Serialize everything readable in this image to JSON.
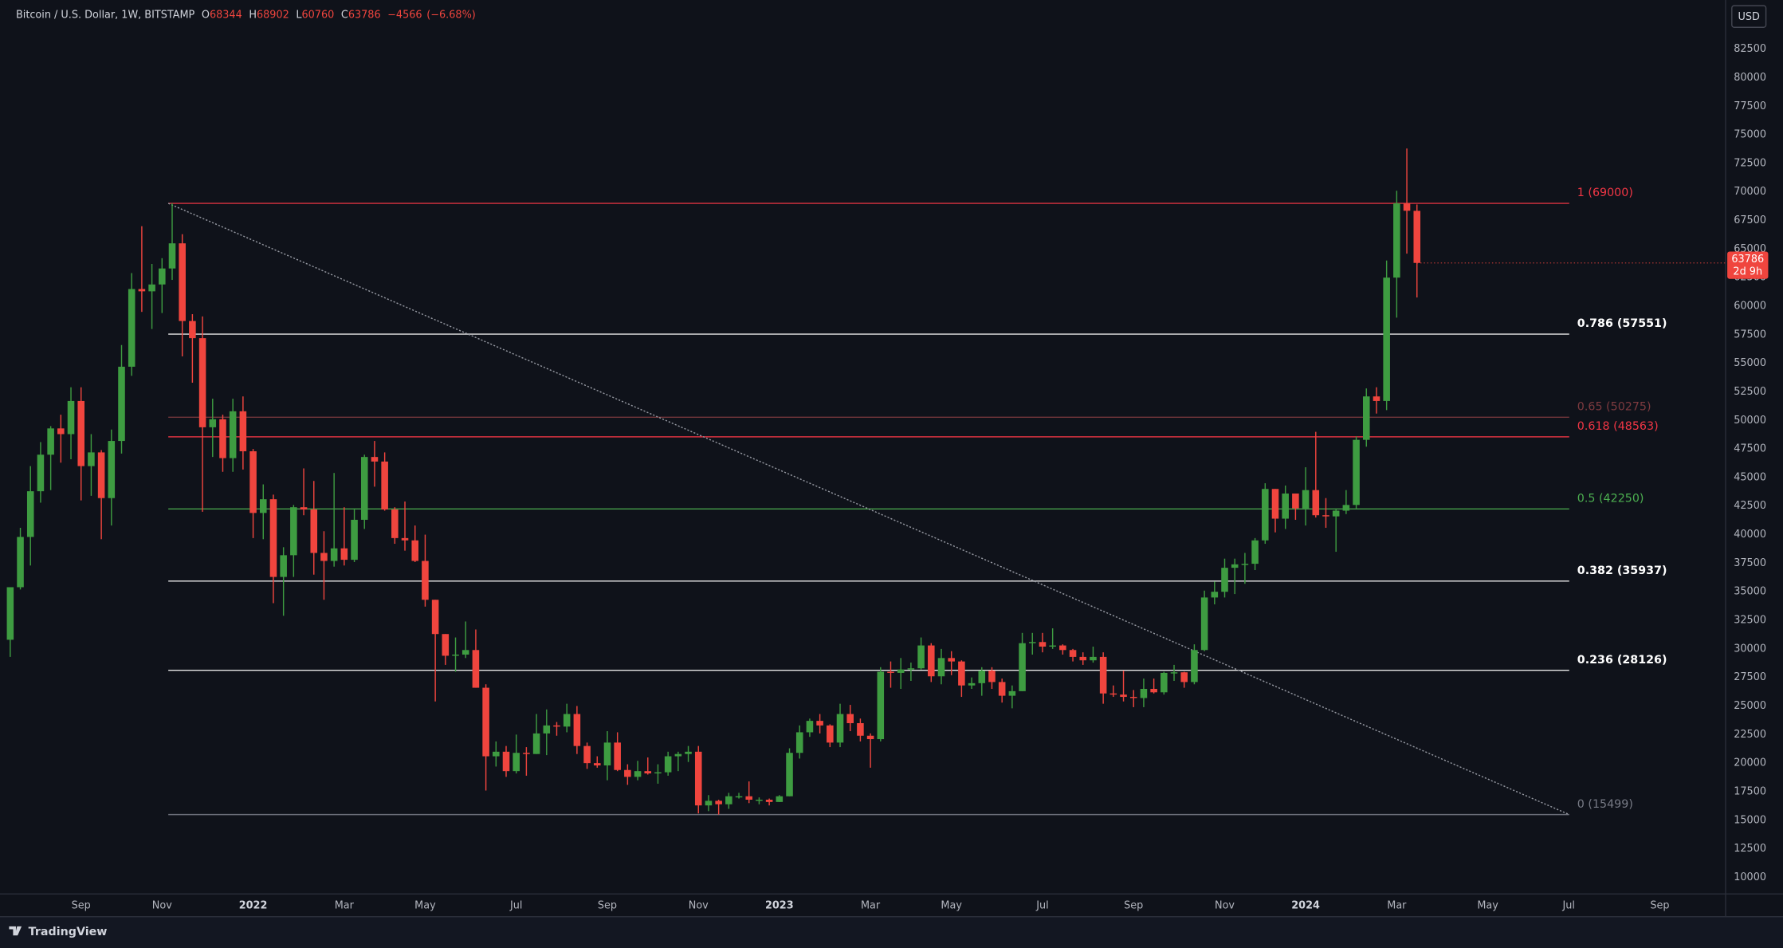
{
  "header": {
    "title": "Bitcoin / U.S. Dollar, 1W, BITSTAMP",
    "ohlc_keys": [
      "O",
      "H",
      "L",
      "C"
    ],
    "change": "−4566",
    "change_pct": "(−6.68%)",
    "currency": "USD",
    "countdown": "2d 9h",
    "brand": "TradingView"
  },
  "chart_data": {
    "type": "candlestick",
    "up_color": "#3e9c41",
    "down_color": "#f0453e",
    "open": [
      30800,
      35400,
      39800,
      43800,
      47000,
      49300,
      48800,
      51700,
      46000,
      47200,
      43200,
      48200,
      54700,
      61500,
      61300,
      61900,
      63300,
      65500,
      58700,
      57200,
      49400,
      50100,
      46700,
      50800,
      47300,
      41900,
      43100,
      36300,
      38200,
      42400,
      42200,
      38400,
      37700,
      38800,
      37800,
      41300,
      46800,
      46400,
      42200,
      39700,
      39500,
      37700,
      34300,
      31300,
      29400,
      29500,
      29900,
      26600,
      20600,
      21000,
      19300,
      20900,
      20800,
      22600,
      23300,
      23200,
      24300,
      21500,
      20000,
      19800,
      21800,
      19400,
      18800,
      19300,
      19100,
      19200,
      20600,
      20800,
      21000,
      16300,
      16700,
      16400,
      17100,
      17100,
      16800,
      16800,
      16600,
      17100,
      20900,
      22700,
      23700,
      23300,
      21800,
      24300,
      23500,
      22400,
      22100,
      28000,
      27900,
      28200,
      28300,
      30300,
      27600,
      29200,
      28900,
      26800,
      27000,
      28100,
      27100,
      25900,
      26300,
      30500,
      30600,
      30200,
      30300,
      29900,
      29300,
      29000,
      29300,
      26100,
      26000,
      25800,
      25700,
      26500,
      26200,
      27900,
      27950,
      27100,
      29900,
      34500,
      35000,
      37100,
      37400,
      37450,
      39500,
      44000,
      41400,
      43600,
      42300,
      43900,
      41700,
      41600,
      42100,
      42600,
      48300,
      52100,
      51700,
      62500,
      69000,
      68344
    ],
    "high": [
      35400,
      40600,
      46000,
      48100,
      49500,
      50500,
      52900,
      52900,
      48800,
      47400,
      49200,
      56600,
      62900,
      67000,
      63700,
      64200,
      69000,
      66300,
      59300,
      59100,
      51900,
      50500,
      51900,
      52100,
      47500,
      44400,
      43500,
      38900,
      42600,
      45800,
      44700,
      40300,
      45400,
      42400,
      42300,
      47000,
      48200,
      47200,
      42400,
      42900,
      40800,
      40000,
      34300,
      31300,
      31000,
      32400,
      31700,
      26900,
      21900,
      21500,
      22500,
      21400,
      24300,
      24700,
      23600,
      25200,
      25000,
      21800,
      20600,
      22800,
      22700,
      19900,
      20200,
      20500,
      19900,
      21000,
      21000,
      21500,
      21500,
      17200,
      16800,
      17400,
      17400,
      18400,
      17000,
      16900,
      17200,
      21300,
      23300,
      23900,
      24300,
      23400,
      25200,
      25100,
      23900,
      22600,
      28400,
      28900,
      29200,
      28800,
      31000,
      30500,
      30000,
      29800,
      29000,
      27500,
      28400,
      28400,
      27400,
      26800,
      31400,
      31400,
      31400,
      31800,
      30400,
      30000,
      29700,
      30200,
      29700,
      26800,
      28100,
      26400,
      27400,
      27400,
      28000,
      28600,
      28000,
      30400,
      35100,
      35900,
      37900,
      37900,
      38400,
      39700,
      44500,
      44000,
      44300,
      43600,
      45900,
      49000,
      43200,
      42200,
      43900,
      48600,
      52800,
      52900,
      64000,
      70100,
      73800,
      68902
    ],
    "low": [
      29300,
      35200,
      37300,
      42800,
      43900,
      46300,
      46600,
      43000,
      43400,
      39600,
      40800,
      47100,
      53900,
      59500,
      58000,
      59400,
      62300,
      55600,
      53300,
      42000,
      46800,
      45500,
      45500,
      45700,
      39700,
      39600,
      34000,
      32900,
      36300,
      41700,
      36500,
      34300,
      37200,
      37300,
      37600,
      40500,
      44200,
      42100,
      39200,
      38600,
      37600,
      33700,
      25400,
      28600,
      28000,
      29200,
      26600,
      17600,
      19700,
      18800,
      19100,
      18900,
      20800,
      20700,
      22400,
      22700,
      20800,
      19500,
      19600,
      18500,
      19300,
      18100,
      18500,
      19000,
      18200,
      18900,
      19300,
      20100,
      15600,
      15800,
      15500,
      16000,
      16900,
      16500,
      16400,
      16300,
      16600,
      17100,
      20400,
      22300,
      22600,
      21400,
      21400,
      22800,
      21900,
      19600,
      21900,
      26600,
      26500,
      27200,
      28200,
      27100,
      26900,
      27700,
      25800,
      26500,
      25900,
      26500,
      25300,
      24800,
      26300,
      29500,
      29700,
      30000,
      29500,
      28900,
      28600,
      28800,
      25200,
      25800,
      25400,
      24900,
      24900,
      26100,
      26000,
      27200,
      26600,
      26900,
      29800,
      33900,
      34500,
      34800,
      35700,
      36900,
      39200,
      40200,
      40500,
      41300,
      40800,
      41500,
      40600,
      38500,
      41800,
      42300,
      47700,
      50600,
      50900,
      59000,
      64600,
      60760
    ],
    "close": [
      35400,
      39800,
      43800,
      47000,
      49300,
      48800,
      51700,
      46000,
      47200,
      43200,
      48200,
      54700,
      61500,
      61300,
      61900,
      63300,
      65500,
      58700,
      57200,
      49400,
      50100,
      46700,
      50800,
      47300,
      41900,
      43100,
      36300,
      38200,
      42400,
      42200,
      38400,
      37700,
      38800,
      37800,
      41300,
      46800,
      46400,
      42200,
      39700,
      39500,
      37700,
      34300,
      31300,
      29400,
      29500,
      29900,
      26600,
      20600,
      21000,
      19300,
      20900,
      20800,
      22600,
      23300,
      23200,
      24300,
      21500,
      20000,
      19800,
      21800,
      19400,
      18800,
      19300,
      19100,
      19200,
      20600,
      20800,
      21000,
      16300,
      16700,
      16400,
      17100,
      17100,
      16800,
      16800,
      16600,
      17100,
      20900,
      22700,
      23700,
      23300,
      21800,
      24300,
      23500,
      22400,
      22100,
      28000,
      27900,
      28200,
      28300,
      30300,
      27600,
      29200,
      28900,
      26800,
      27000,
      28100,
      27100,
      25900,
      26300,
      30500,
      30600,
      30200,
      30300,
      29900,
      29300,
      29000,
      29300,
      26100,
      26000,
      25800,
      25700,
      26500,
      26200,
      27900,
      27950,
      27100,
      29900,
      34500,
      35000,
      37100,
      37400,
      37450,
      39500,
      44000,
      41400,
      43600,
      42300,
      43900,
      41700,
      41600,
      42100,
      42600,
      48300,
      52100,
      51700,
      62500,
      69000,
      68352,
      63786
    ],
    "ylim": [
      8600,
      86800
    ],
    "yticks": [
      10000,
      12500,
      15000,
      17500,
      20000,
      22500,
      25000,
      27500,
      30000,
      32500,
      35000,
      37500,
      40000,
      42500,
      45000,
      47500,
      50000,
      52500,
      55000,
      57500,
      60000,
      62500,
      65000,
      67500,
      70000,
      72500,
      75000,
      77500,
      80000,
      82500
    ],
    "xticks": [
      {
        "value": "2021-09",
        "label": "Sep"
      },
      {
        "value": "2021-11",
        "label": "Nov"
      },
      {
        "value": "2022-01",
        "label": "2022"
      },
      {
        "value": "2022-03",
        "label": "Mar"
      },
      {
        "value": "2022-05",
        "label": "May"
      },
      {
        "value": "2022-07",
        "label": "Jul"
      },
      {
        "value": "2022-09",
        "label": "Sep"
      },
      {
        "value": "2022-11",
        "label": "Nov"
      },
      {
        "value": "2023-01",
        "label": "2023"
      },
      {
        "value": "2023-03",
        "label": "Mar"
      },
      {
        "value": "2023-05",
        "label": "May"
      },
      {
        "value": "2023-07",
        "label": "Jul"
      },
      {
        "value": "2023-09",
        "label": "Sep"
      },
      {
        "value": "2023-11",
        "label": "Nov"
      },
      {
        "value": "2024-01",
        "label": "2024"
      },
      {
        "value": "2024-03",
        "label": "Mar"
      },
      {
        "value": "2024-05",
        "label": "May"
      },
      {
        "value": "2024-07",
        "label": "Jul"
      },
      {
        "value": "2024-09",
        "label": "Sep"
      }
    ],
    "fib_levels": [
      {
        "label": "1 (69000)",
        "value": 69000,
        "color": "#f23645"
      },
      {
        "label": "0.786 (57551)",
        "value": 57551,
        "color": "#ffffff"
      },
      {
        "label": "0.65 (50275)",
        "value": 50275,
        "color": "#7d3a3f"
      },
      {
        "label": "0.618 (48563)",
        "value": 48563,
        "color": "#f23645"
      },
      {
        "label": "0.5 (42250)",
        "value": 42250,
        "color": "#4caf50"
      },
      {
        "label": "0.382 (35937)",
        "value": 35937,
        "color": "#ffffff"
      },
      {
        "label": "0.236 (28126)",
        "value": 28126,
        "color": "#ffffff"
      },
      {
        "label": "0 (15499)",
        "value": 15499,
        "color": "#787b86"
      }
    ]
  }
}
